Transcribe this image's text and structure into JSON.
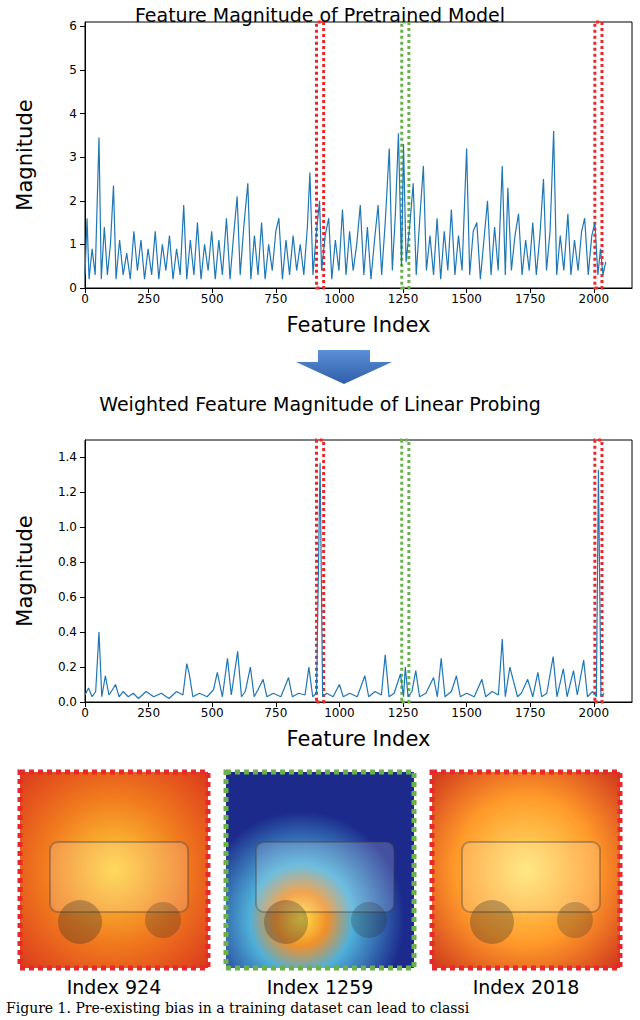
{
  "chart_data": [
    {
      "type": "line",
      "title": "Feature Magnitude of Pretrained Model",
      "xlabel": "Feature Index",
      "ylabel": "Magnitude",
      "color": "#1f77b4",
      "grid": false,
      "x": [
        0,
        8,
        16,
        28,
        40,
        55,
        64,
        76,
        88,
        100,
        112,
        122,
        136,
        150,
        164,
        178,
        192,
        206,
        220,
        234,
        248,
        262,
        276,
        290,
        304,
        318,
        332,
        346,
        360,
        374,
        388,
        400,
        414,
        428,
        442,
        456,
        470,
        484,
        498,
        512,
        526,
        540,
        556,
        570,
        584,
        598,
        610,
        624,
        640,
        652,
        666,
        680,
        694,
        708,
        722,
        736,
        750,
        762,
        776,
        790,
        804,
        818,
        832,
        846,
        860,
        874,
        884,
        896,
        910,
        922,
        930,
        944,
        958,
        970,
        984,
        998,
        1012,
        1026,
        1040,
        1054,
        1068,
        1082,
        1096,
        1110,
        1124,
        1138,
        1152,
        1166,
        1180,
        1196,
        1208,
        1220,
        1232,
        1244,
        1252,
        1262,
        1276,
        1290,
        1302,
        1316,
        1330,
        1342,
        1356,
        1370,
        1384,
        1398,
        1412,
        1426,
        1440,
        1454,
        1468,
        1482,
        1500,
        1512,
        1526,
        1540,
        1554,
        1568,
        1582,
        1596,
        1610,
        1624,
        1640,
        1652,
        1662,
        1676,
        1690,
        1704,
        1718,
        1732,
        1746,
        1760,
        1774,
        1788,
        1802,
        1814,
        1828,
        1842,
        1854,
        1868,
        1882,
        1898,
        1910,
        1924,
        1938,
        1952,
        1964,
        1978,
        1992,
        2004,
        2016,
        2026,
        2036,
        2047
      ],
      "values": [
        0.3,
        1.6,
        0.2,
        0.9,
        0.3,
        3.45,
        0.2,
        1.4,
        0.3,
        1.0,
        2.35,
        0.2,
        1.1,
        0.3,
        0.8,
        0.2,
        1.3,
        0.4,
        1.1,
        0.2,
        0.9,
        0.3,
        1.3,
        0.2,
        1.0,
        0.4,
        1.2,
        0.2,
        0.9,
        0.3,
        1.9,
        0.2,
        1.1,
        0.3,
        1.5,
        0.2,
        1.0,
        0.4,
        1.3,
        0.2,
        1.1,
        0.3,
        1.6,
        0.2,
        1.2,
        2.1,
        0.3,
        1.4,
        2.4,
        0.2,
        1.2,
        0.3,
        1.5,
        0.2,
        1.0,
        0.4,
        1.3,
        1.6,
        0.2,
        1.1,
        0.3,
        1.2,
        0.4,
        1.0,
        0.3,
        1.4,
        2.65,
        0.3,
        1.3,
        2.0,
        0.4,
        1.2,
        1.6,
        0.2,
        1.1,
        0.4,
        1.8,
        0.3,
        1.3,
        0.4,
        1.0,
        1.9,
        0.3,
        1.4,
        0.2,
        1.1,
        1.9,
        0.3,
        1.5,
        3.2,
        0.4,
        1.7,
        3.55,
        0.5,
        3.3,
        0.6,
        1.4,
        2.4,
        0.3,
        1.6,
        2.8,
        0.4,
        1.2,
        0.3,
        1.6,
        0.2,
        1.3,
        0.4,
        1.8,
        0.3,
        1.2,
        0.4,
        3.2,
        0.3,
        1.3,
        1.5,
        0.2,
        1.1,
        2.0,
        0.3,
        1.4,
        0.4,
        2.8,
        0.3,
        2.3,
        0.4,
        1.2,
        1.7,
        0.3,
        1.1,
        0.4,
        1.5,
        0.3,
        1.2,
        2.5,
        0.4,
        1.3,
        3.6,
        0.3,
        1.2,
        0.4,
        1.7,
        0.3,
        1.1,
        0.4,
        1.3,
        1.6,
        0.3,
        1.2,
        1.5,
        0.3,
        0.9,
        0.3,
        0.6
      ],
      "xlim": [
        0,
        2150
      ],
      "xticks": [
        0,
        250,
        500,
        750,
        1000,
        1250,
        1500,
        1750,
        2000
      ],
      "ylim": [
        0,
        6.1
      ],
      "yticks": [
        0,
        1,
        2,
        3,
        4,
        5,
        6
      ]
    },
    {
      "type": "line",
      "title": "Weighted Feature Magnitude of Linear Probing",
      "xlabel": "Feature Index",
      "ylabel": "Magnitude",
      "color": "#1f77b4",
      "grid": false,
      "x": [
        0,
        14,
        28,
        42,
        55,
        66,
        80,
        94,
        108,
        120,
        134,
        150,
        170,
        190,
        210,
        240,
        270,
        300,
        330,
        360,
        385,
        400,
        410,
        424,
        450,
        480,
        505,
        520,
        540,
        560,
        575,
        600,
        615,
        630,
        650,
        665,
        680,
        700,
        715,
        740,
        770,
        800,
        815,
        840,
        865,
        880,
        895,
        910,
        924,
        934,
        950,
        975,
        1000,
        1015,
        1040,
        1070,
        1100,
        1115,
        1140,
        1165,
        1180,
        1195,
        1215,
        1240,
        1252,
        1259,
        1270,
        1285,
        1300,
        1315,
        1340,
        1370,
        1385,
        1400,
        1415,
        1440,
        1460,
        1475,
        1500,
        1530,
        1560,
        1575,
        1600,
        1625,
        1640,
        1652,
        1670,
        1700,
        1715,
        1740,
        1760,
        1780,
        1795,
        1815,
        1840,
        1855,
        1880,
        1895,
        1920,
        1935,
        1960,
        1975,
        1995,
        2010,
        2018,
        2028,
        2040
      ],
      "values": [
        0.04,
        0.08,
        0.03,
        0.06,
        0.4,
        0.03,
        0.15,
        0.04,
        0.07,
        0.1,
        0.03,
        0.06,
        0.03,
        0.05,
        0.02,
        0.06,
        0.03,
        0.05,
        0.02,
        0.06,
        0.04,
        0.22,
        0.16,
        0.03,
        0.05,
        0.03,
        0.07,
        0.17,
        0.03,
        0.25,
        0.04,
        0.29,
        0.03,
        0.06,
        0.2,
        0.03,
        0.07,
        0.13,
        0.03,
        0.05,
        0.03,
        0.14,
        0.03,
        0.05,
        0.04,
        0.2,
        0.03,
        0.05,
        1.37,
        0.03,
        0.05,
        0.03,
        0.1,
        0.03,
        0.05,
        0.03,
        0.15,
        0.03,
        0.06,
        0.04,
        0.27,
        0.03,
        0.05,
        0.16,
        0.03,
        0.2,
        0.03,
        0.06,
        0.18,
        0.03,
        0.05,
        0.14,
        0.03,
        0.25,
        0.03,
        0.06,
        0.15,
        0.03,
        0.05,
        0.03,
        0.13,
        0.03,
        0.06,
        0.04,
        0.36,
        0.03,
        0.2,
        0.03,
        0.05,
        0.13,
        0.03,
        0.17,
        0.03,
        0.05,
        0.26,
        0.03,
        0.19,
        0.03,
        0.18,
        0.04,
        0.24,
        0.03,
        0.06,
        0.03,
        1.33,
        0.03,
        0.05
      ],
      "xlim": [
        0,
        2150
      ],
      "xticks": [
        0,
        250,
        500,
        750,
        1000,
        1250,
        1500,
        1750,
        2000
      ],
      "ylim": [
        0,
        1.5
      ],
      "yticks": [
        {
          "value": 0,
          "label": "0.0"
        },
        {
          "value": 0.2,
          "label": "0.2"
        },
        {
          "value": 0.4,
          "label": "0.4"
        },
        {
          "value": 0.6,
          "label": "0.6"
        },
        {
          "value": 0.8,
          "label": "0.8"
        },
        {
          "value": 1.0,
          "label": "1.0"
        },
        {
          "value": 1.2,
          "label": "1.2"
        },
        {
          "value": 1.4,
          "label": "1.4"
        }
      ]
    }
  ],
  "highlights": [
    {
      "index": 924,
      "label": "Index 924",
      "color": "#e8282b"
    },
    {
      "index": 1259,
      "label": "Index 1259",
      "color": "#6ab04c"
    },
    {
      "index": 2018,
      "label": "Index 2018",
      "color": "#e8282b"
    }
  ],
  "caption": "Figure 1. Pre-existing bias in a training dataset can lead to classi"
}
